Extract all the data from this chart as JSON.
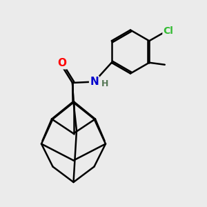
{
  "background_color": "#ebebeb",
  "bond_color": "#000000",
  "bond_width": 1.8,
  "atom_colors": {
    "O": "#ff0000",
    "N": "#0000cc",
    "Cl": "#33bb33",
    "H": "#557755"
  },
  "font_size": 10,
  "figsize": [
    3.0,
    3.0
  ],
  "dpi": 100
}
